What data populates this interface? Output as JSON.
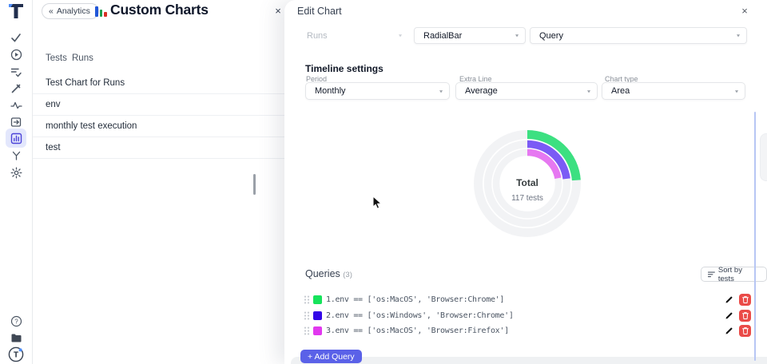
{
  "icons": {
    "back": "«",
    "close": "×",
    "caret": "▾",
    "logo_letter": "T",
    "avatar_letter": "T",
    "help_mark": "?"
  },
  "list_panel": {
    "back_label": "Analytics",
    "title": "Custom Charts",
    "tabs": [
      "Tests",
      "Runs"
    ],
    "items": [
      "Test Chart for Runs",
      "env",
      "monthly test execution",
      "test"
    ]
  },
  "drawer": {
    "title": "Edit Chart",
    "source_select": "Runs",
    "type_select": "RadialBar",
    "mode_select": "Query",
    "timeline": {
      "heading": "Timeline settings",
      "fields": [
        {
          "label": "Period",
          "value": "Monthly"
        },
        {
          "label": "Extra Line",
          "value": "Average"
        },
        {
          "label": "Chart type",
          "value": "Area"
        }
      ]
    },
    "queries": {
      "heading": "Queries",
      "count": "(3)",
      "sort_label": "Sort by tests",
      "rows": [
        {
          "swatch": "#16e35b",
          "text": "1.env == ['os:MacOS', 'Browser:Chrome']"
        },
        {
          "swatch": "#3307e8",
          "text": "2.env == ['os:Windows', 'Browser:Chrome']"
        },
        {
          "swatch": "#e138ef",
          "text": "3.env == ['os:MacOS', 'Browser:Firefox']"
        }
      ],
      "add_label": "+ Add Query"
    }
  },
  "chart_data": {
    "type": "radial-bar",
    "center": {
      "label": "Total",
      "value": "117 tests"
    },
    "track_color": "#f2f3f5",
    "legend_position": "none",
    "rings": [
      {
        "name": "env == ['os:MacOS', 'Browser:Chrome']",
        "color": "#3ce081",
        "sweep_deg": 86,
        "radius": 61.5,
        "thickness": 11
      },
      {
        "name": "env == ['os:Windows', 'Browser:Chrome']",
        "color": "#7b5bf5",
        "sweep_deg": 83,
        "radius": 49.5,
        "thickness": 9.5
      },
      {
        "name": "env == ['os:MacOS', 'Browser:Firefox']",
        "color": "#e678f1",
        "sweep_deg": 80,
        "radius": 39,
        "thickness": 8.5
      }
    ]
  }
}
